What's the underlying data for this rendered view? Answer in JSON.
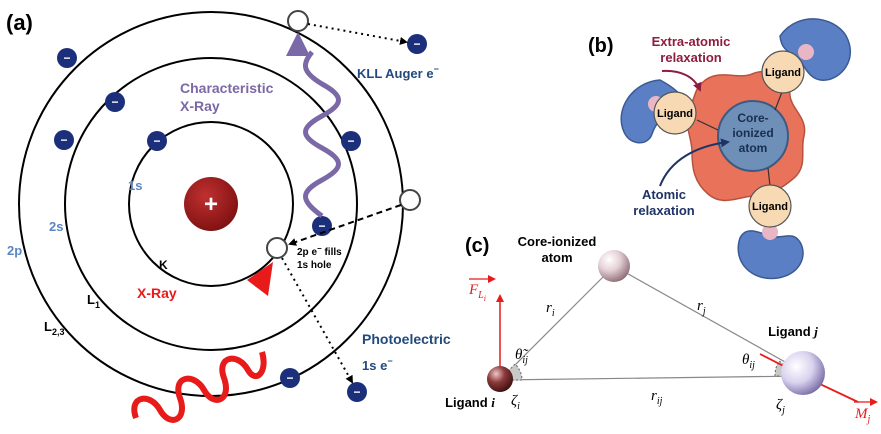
{
  "panel_a": {
    "label": "(a)",
    "nucleus_sign": "+",
    "electron_sign": "−",
    "shells": {
      "k": "K",
      "s1": "1s",
      "s2": "2s",
      "p2": "2p",
      "l1_base": "L",
      "l1_sub": "1",
      "l23_base": "L",
      "l23_sub": "2,3"
    },
    "characteristic_xray_line1": "Characteristic",
    "characteristic_xray_line2": "X-Ray",
    "kll_auger_base": "KLL Auger e",
    "kll_auger_sup": "−",
    "fill_note_line1_base": "2p e",
    "fill_note_line1_sup": "−",
    "fill_note_line1_rest": " fills",
    "fill_note_line2": "1s hole",
    "xray_label": "X-Ray",
    "photoelectric_line1": "Photoelectric",
    "photoelectric_line2_base": "1s e",
    "photoelectric_line2_sup": "−",
    "colors": {
      "electron": "#1c2f7a",
      "nucleus": "#9e1a1a",
      "xray": "#e81b1b",
      "characteristic": "#7b68a6",
      "shell_label": "#5b86c4",
      "auger": "#234a7e"
    }
  },
  "panel_b": {
    "label": "(b)",
    "extra_atomic_line1": "Extra-atomic",
    "extra_atomic_line2": "relaxation",
    "core_line1": "Core-",
    "core_line2": "ionized",
    "core_line3": "atom",
    "ligand": "Ligand",
    "atomic_line1": "Atomic",
    "atomic_line2": "relaxation",
    "colors": {
      "blob": "#e8735a",
      "core": "#6e8fb8",
      "ligand": "#f7d9b4",
      "tail": "#5b7fc4",
      "extra_atomic": "#8f1c3e",
      "atomic": "#1f3366"
    }
  },
  "panel_c": {
    "label": "(c)",
    "core_line1": "Core-ionized",
    "core_line2": "atom",
    "ligand_i": "Ligand ",
    "ligand_i_var": "i",
    "ligand_j": "Ligand ",
    "ligand_j_var": "j",
    "force_base": "F",
    "force_sub": "L",
    "force_subsub": "i",
    "moment_base": "M",
    "moment_sub": "j",
    "r_i_base": "r",
    "r_i_sub": "i",
    "r_j_base": "r",
    "r_j_sub": "j",
    "r_ij_base": "r",
    "r_ij_sub": "ij",
    "theta_tilde_base": "θ̃",
    "theta_tilde_sub": "ij",
    "theta_base": "θ",
    "theta_sub": "ij",
    "zeta_i_base": "ζ",
    "zeta_i_sub": "i",
    "zeta_j_base": "ζ",
    "zeta_j_sub": "j"
  }
}
